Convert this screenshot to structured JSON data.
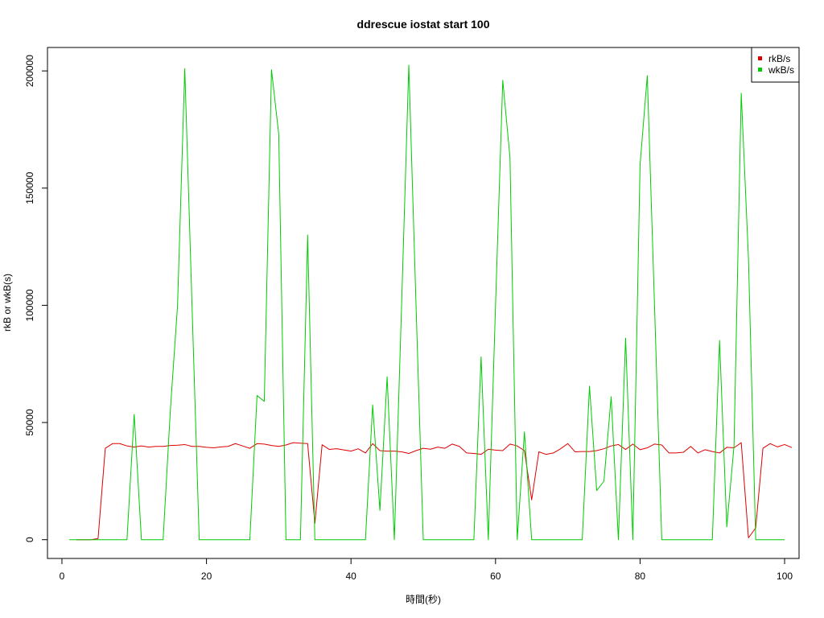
{
  "chart_data": {
    "type": "line",
    "title": "ddrescue iostat start 100",
    "xlabel": "時間(秒)",
    "ylabel": "rkB or wkB(s)",
    "xlim": [
      -2,
      102
    ],
    "ylim": [
      -8000,
      210000
    ],
    "x_ticks": [
      0,
      20,
      40,
      60,
      80,
      100
    ],
    "y_ticks": [
      0,
      50000,
      100000,
      150000,
      200000
    ],
    "grid": false,
    "legend_position": "top-right",
    "series": [
      {
        "name": "rkB/s",
        "color": "#dd0000",
        "x": [
          2,
          3,
          4,
          5,
          6,
          7,
          8,
          9,
          10,
          11,
          12,
          13,
          14,
          15,
          16,
          17,
          18,
          19,
          20,
          21,
          22,
          23,
          24,
          25,
          26,
          27,
          28,
          29,
          30,
          31,
          32,
          33,
          34,
          35,
          36,
          37,
          38,
          39,
          40,
          41,
          42,
          43,
          44,
          45,
          46,
          47,
          48,
          49,
          50,
          51,
          52,
          53,
          54,
          55,
          56,
          57,
          58,
          59,
          60,
          61,
          62,
          63,
          64,
          65,
          66,
          67,
          68,
          69,
          70,
          71,
          72,
          73,
          74,
          75,
          76,
          77,
          78,
          79,
          80,
          81,
          82,
          83,
          84,
          85,
          86,
          87,
          88,
          89,
          90,
          91,
          92,
          93,
          94,
          95,
          96,
          97,
          98,
          99,
          100,
          101
        ],
        "values": [
          0,
          0,
          0,
          500,
          39000,
          41000,
          41000,
          40000,
          39500,
          40000,
          39500,
          39800,
          39800,
          40200,
          40300,
          40600,
          39800,
          39800,
          39400,
          39200,
          39600,
          39800,
          41000,
          40000,
          39000,
          41000,
          40800,
          40200,
          39800,
          40400,
          41400,
          41200,
          41000,
          7000,
          40500,
          38500,
          38800,
          38300,
          37800,
          38800,
          37000,
          41000,
          38000,
          37800,
          37800,
          37500,
          36800,
          38000,
          39000,
          38600,
          39500,
          39000,
          40800,
          39800,
          37000,
          36800,
          36400,
          38600,
          38200,
          38000,
          40800,
          40000,
          38000,
          17000,
          37500,
          36400,
          37000,
          38800,
          41000,
          37500,
          37600,
          37600,
          38000,
          38800,
          40000,
          40600,
          38500,
          40800,
          38400,
          39200,
          40800,
          40400,
          37000,
          37000,
          37300,
          39800,
          37000,
          38400,
          37600,
          37000,
          39400,
          39200,
          41400,
          800,
          5000,
          39000,
          41000,
          39600,
          40600,
          39300
        ]
      },
      {
        "name": "wkB/s",
        "color": "#00cc00",
        "x": [
          1,
          2,
          3,
          4,
          5,
          6,
          7,
          8,
          9,
          10,
          11,
          12,
          13,
          14,
          15,
          16,
          17,
          18,
          19,
          20,
          21,
          22,
          23,
          24,
          25,
          26,
          27,
          28,
          29,
          30,
          31,
          32,
          33,
          34,
          35,
          36,
          37,
          38,
          39,
          40,
          41,
          42,
          43,
          44,
          45,
          46,
          47,
          48,
          49,
          50,
          51,
          52,
          53,
          54,
          55,
          56,
          57,
          58,
          59,
          60,
          61,
          62,
          63,
          64,
          65,
          66,
          67,
          68,
          69,
          70,
          71,
          72,
          73,
          74,
          75,
          76,
          77,
          78,
          79,
          80,
          81,
          82,
          83,
          84,
          85,
          86,
          87,
          88,
          89,
          90,
          91,
          92,
          93,
          94,
          95,
          96,
          97,
          98,
          99,
          100
        ],
        "values": [
          0,
          0,
          0,
          0,
          0,
          0,
          0,
          0,
          0,
          53500,
          0,
          0,
          0,
          0,
          55000,
          100000,
          201000,
          100000,
          0,
          0,
          0,
          0,
          0,
          0,
          0,
          0,
          61500,
          59000,
          200500,
          173000,
          0,
          0,
          0,
          130000,
          0,
          0,
          0,
          0,
          0,
          0,
          0,
          0,
          57500,
          12500,
          69500,
          0,
          100000,
          202500,
          100000,
          0,
          0,
          0,
          0,
          0,
          0,
          0,
          0,
          78000,
          0,
          100000,
          196000,
          163000,
          0,
          46000,
          0,
          0,
          0,
          0,
          0,
          0,
          0,
          0,
          65500,
          21000,
          25000,
          61000,
          0,
          86000,
          0,
          160000,
          198000,
          100000,
          0,
          0,
          0,
          0,
          0,
          0,
          0,
          0,
          85000,
          5500,
          40000,
          190500,
          120000,
          0,
          0,
          0,
          0,
          0
        ]
      }
    ]
  }
}
